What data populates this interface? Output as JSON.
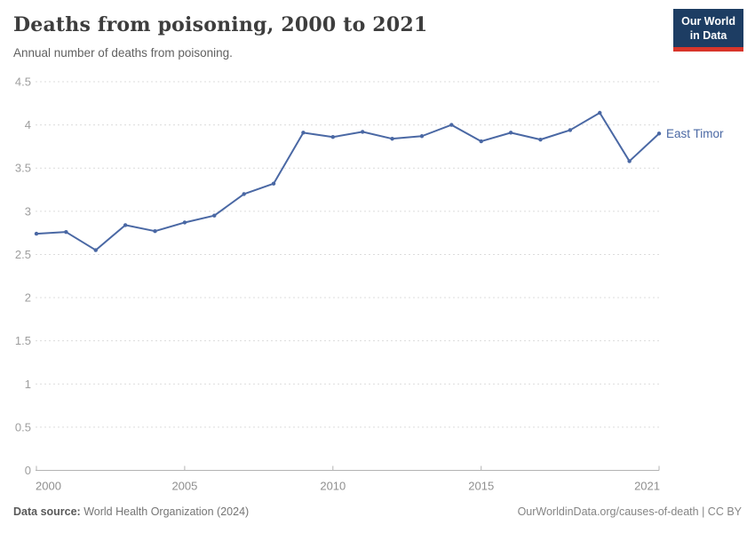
{
  "header": {
    "title": "Deaths from poisoning, 2000 to 2021",
    "subtitle": "Annual number of deaths from poisoning.",
    "logo": {
      "line1": "Our World",
      "line2": "in Data",
      "bg_color": "#1d3d63",
      "accent_color": "#d8352a"
    }
  },
  "chart_data": {
    "type": "line",
    "title": "Deaths from poisoning, 2000 to 2021",
    "xlabel": "",
    "ylabel": "",
    "x": [
      2000,
      2001,
      2002,
      2003,
      2004,
      2005,
      2006,
      2007,
      2008,
      2009,
      2010,
      2011,
      2012,
      2013,
      2014,
      2015,
      2016,
      2017,
      2018,
      2019,
      2020,
      2021
    ],
    "series": [
      {
        "name": "East Timor",
        "color": "#4a68a4",
        "values": [
          2.74,
          2.76,
          2.55,
          2.84,
          2.77,
          2.87,
          2.95,
          3.2,
          3.32,
          3.91,
          3.86,
          3.92,
          3.84,
          3.87,
          4.0,
          3.81,
          3.91,
          3.83,
          3.94,
          4.14,
          3.58,
          3.9
        ]
      }
    ],
    "ylim": [
      0,
      4.5
    ],
    "yticks": [
      0,
      0.5,
      1,
      1.5,
      2,
      2.5,
      3,
      3.5,
      4,
      4.5
    ],
    "xticks": [
      2000,
      2005,
      2010,
      2015,
      2021
    ],
    "grid": "horizontal-dashed",
    "legend_position": "end-of-line",
    "colors": {
      "gridline": "#dcdcdc",
      "axis_line": "#b3b3b3",
      "y_tick_label": "#9e9e9e",
      "x_tick_label": "#8f8f8f"
    }
  },
  "footer": {
    "datasource_label": "Data source:",
    "datasource_value": " World Health Organization (2024)",
    "attribution": "OurWorldinData.org/causes-of-death | CC BY"
  }
}
